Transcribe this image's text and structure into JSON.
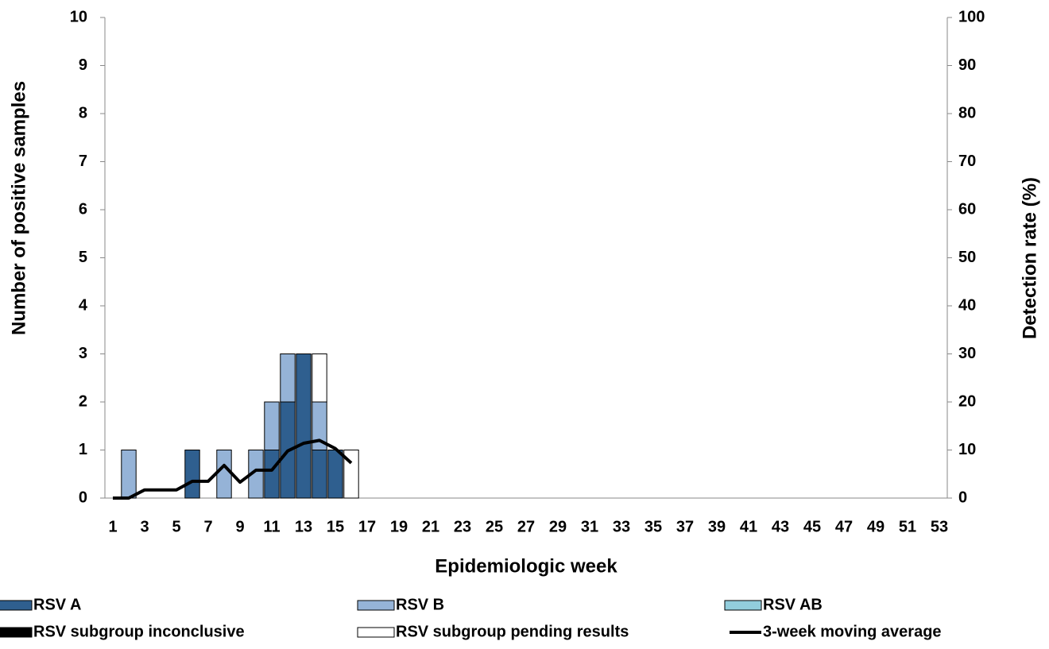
{
  "chart_data": {
    "type": "bar",
    "stacked": true,
    "x_label": "Epidemiologic week",
    "y_label": "Number of positive samples",
    "y2_label": "Detection rate (%)",
    "categories": [
      1,
      null,
      3,
      null,
      5,
      null,
      7,
      null,
      9,
      null,
      11,
      null,
      13,
      null,
      15,
      null,
      17,
      null,
      19,
      null,
      21,
      null,
      23,
      null,
      25,
      null,
      27,
      null,
      29,
      null,
      31,
      null,
      33,
      null,
      35,
      null,
      37,
      null,
      39,
      null,
      41,
      null,
      43,
      null,
      45,
      null,
      47,
      null,
      49,
      null,
      51,
      null,
      53
    ],
    "series": [
      {
        "name": "RSV A",
        "color": "#2f5f8f",
        "values": [
          0,
          0,
          0,
          0,
          0,
          1,
          0,
          0,
          0,
          0,
          1,
          2,
          3,
          1,
          1,
          0,
          0,
          0,
          0,
          0,
          0,
          0,
          0,
          0,
          0,
          0,
          0,
          0,
          0,
          0,
          0,
          0,
          0,
          0,
          0,
          0,
          0,
          0,
          0,
          0,
          0,
          0,
          0,
          0,
          0,
          0,
          0,
          0,
          0,
          0,
          0,
          0,
          0
        ]
      },
      {
        "name": "RSV B",
        "color": "#95b3d7",
        "values": [
          0,
          1,
          0,
          0,
          0,
          0,
          0,
          1,
          0,
          1,
          1,
          1,
          0,
          1,
          0,
          0,
          0,
          0,
          0,
          0,
          0,
          0,
          0,
          0,
          0,
          0,
          0,
          0,
          0,
          0,
          0,
          0,
          0,
          0,
          0,
          0,
          0,
          0,
          0,
          0,
          0,
          0,
          0,
          0,
          0,
          0,
          0,
          0,
          0,
          0,
          0,
          0,
          0
        ]
      },
      {
        "name": "RSV AB",
        "color": "#92cddc",
        "values": [
          0,
          0,
          0,
          0,
          0,
          0,
          0,
          0,
          0,
          0,
          0,
          0,
          0,
          0,
          0,
          0,
          0,
          0,
          0,
          0,
          0,
          0,
          0,
          0,
          0,
          0,
          0,
          0,
          0,
          0,
          0,
          0,
          0,
          0,
          0,
          0,
          0,
          0,
          0,
          0,
          0,
          0,
          0,
          0,
          0,
          0,
          0,
          0,
          0,
          0,
          0,
          0,
          0
        ]
      },
      {
        "name": "RSV subgroup inconclusive",
        "color": "#000000",
        "values": [
          0,
          0,
          0,
          0,
          0,
          0,
          0,
          0,
          0,
          0,
          0,
          0,
          0,
          0,
          0,
          0,
          0,
          0,
          0,
          0,
          0,
          0,
          0,
          0,
          0,
          0,
          0,
          0,
          0,
          0,
          0,
          0,
          0,
          0,
          0,
          0,
          0,
          0,
          0,
          0,
          0,
          0,
          0,
          0,
          0,
          0,
          0,
          0,
          0,
          0,
          0,
          0,
          0
        ]
      },
      {
        "name": "RSV subgroup pending results",
        "color": "#ffffff",
        "values": [
          0,
          0,
          0,
          0,
          0,
          0,
          0,
          0,
          0,
          0,
          0,
          0,
          0,
          1,
          0,
          1,
          0,
          0,
          0,
          0,
          0,
          0,
          0,
          0,
          0,
          0,
          0,
          0,
          0,
          0,
          0,
          0,
          0,
          0,
          0,
          0,
          0,
          0,
          0,
          0,
          0,
          0,
          0,
          0,
          0,
          0,
          0,
          0,
          0,
          0,
          0,
          0,
          0
        ]
      },
      {
        "name": "3-week moving average",
        "color": "#000000",
        "type": "line",
        "axis": "y2",
        "values": [
          0,
          0,
          1.7,
          1.7,
          1.7,
          3.5,
          3.5,
          6.8,
          3.3,
          5.8,
          5.8,
          9.8,
          11.4,
          12,
          10.3,
          7.3,
          null,
          null,
          null,
          null,
          null,
          null,
          null,
          null,
          null,
          null,
          null,
          null,
          null,
          null,
          null,
          null,
          null,
          null,
          null,
          null,
          null,
          null,
          null,
          null,
          null,
          null,
          null,
          null,
          null,
          null,
          null,
          null,
          null,
          null,
          null,
          null,
          null
        ]
      }
    ],
    "ylim": [
      0,
      10
    ],
    "yticks": [
      0,
      1,
      2,
      3,
      4,
      5,
      6,
      7,
      8,
      9,
      10
    ],
    "y2lim": [
      0,
      100
    ],
    "y2ticks": [
      0,
      10,
      20,
      30,
      40,
      50,
      60,
      70,
      80,
      90,
      100
    ],
    "grid": false,
    "legend": "bottom"
  }
}
